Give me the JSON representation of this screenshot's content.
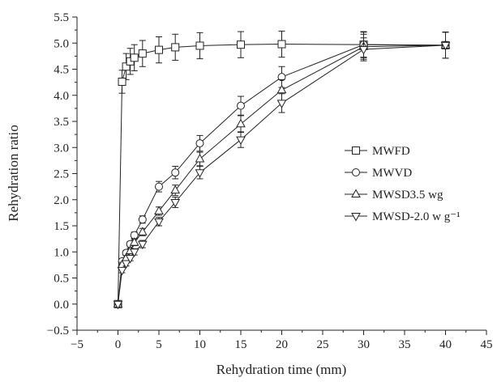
{
  "chart_data": {
    "type": "line",
    "title": "",
    "xlabel": "Rehydration time (mm)",
    "ylabel": "Rehydration ratio",
    "xlim": [
      -5,
      45
    ],
    "ylim": [
      -0.5,
      5.5
    ],
    "x_ticks": [
      -5,
      0,
      5,
      10,
      15,
      20,
      25,
      30,
      35,
      40,
      45
    ],
    "x_tick_labels": [
      "−5",
      "0",
      "5",
      "10",
      "15",
      "20",
      "25",
      "30",
      "35",
      "40",
      "45"
    ],
    "y_ticks": [
      -0.5,
      0.0,
      0.5,
      1.0,
      1.5,
      2.0,
      2.5,
      3.0,
      3.5,
      4.0,
      4.5,
      5.0,
      5.5
    ],
    "y_tick_labels": [
      "−0.5",
      "0.0",
      "0.5",
      "1.0",
      "1.5",
      "2.0",
      "2.5",
      "3.0",
      "3.5",
      "4.0",
      "4.5",
      "5.0",
      "5.5"
    ],
    "grid": false,
    "legend_position": "right-middle",
    "series": [
      {
        "name": "MWFD",
        "marker": "square",
        "x": [
          0,
          0.5,
          1,
          1.5,
          2,
          3,
          5,
          7,
          10,
          15,
          20,
          30,
          40
        ],
        "y": [
          0,
          4.26,
          4.55,
          4.65,
          4.72,
          4.8,
          4.87,
          4.92,
          4.95,
          4.97,
          4.98,
          4.97,
          4.96
        ],
        "err": [
          0,
          0.22,
          0.25,
          0.25,
          0.25,
          0.25,
          0.25,
          0.25,
          0.25,
          0.25,
          0.25,
          0.25,
          0.25
        ]
      },
      {
        "name": "MWVD",
        "marker": "circle",
        "x": [
          0,
          0.5,
          1,
          1.5,
          2,
          3,
          5,
          7,
          10,
          15,
          20,
          30,
          40
        ],
        "y": [
          0,
          0.82,
          0.98,
          1.15,
          1.32,
          1.62,
          2.25,
          2.52,
          3.08,
          3.8,
          4.35,
          4.97,
          4.96
        ],
        "err": [
          0,
          0.05,
          0.05,
          0.05,
          0.06,
          0.07,
          0.1,
          0.12,
          0.15,
          0.18,
          0.2,
          0.24,
          0.25
        ]
      },
      {
        "name": "MWSD3.5 wg",
        "marker": "triangle-up",
        "x": [
          0,
          0.5,
          1,
          1.5,
          2,
          3,
          5,
          7,
          10,
          15,
          20,
          30,
          40
        ],
        "y": [
          0,
          0.75,
          0.88,
          1.02,
          1.18,
          1.38,
          1.78,
          2.18,
          2.78,
          3.45,
          4.1,
          4.93,
          4.96
        ],
        "err": [
          0,
          0.05,
          0.05,
          0.05,
          0.06,
          0.07,
          0.08,
          0.1,
          0.13,
          0.16,
          0.2,
          0.24,
          0.25
        ]
      },
      {
        "name": "MWSD-2.0 w g⁻¹",
        "marker": "triangle-down",
        "x": [
          0,
          0.5,
          1,
          1.5,
          2,
          3,
          5,
          7,
          10,
          15,
          20,
          30,
          40
        ],
        "y": [
          0,
          0.65,
          0.78,
          0.88,
          1.0,
          1.15,
          1.58,
          1.95,
          2.52,
          3.15,
          3.85,
          4.88,
          4.96
        ],
        "err": [
          0,
          0.05,
          0.05,
          0.05,
          0.06,
          0.07,
          0.08,
          0.1,
          0.12,
          0.15,
          0.18,
          0.22,
          0.25
        ]
      }
    ]
  }
}
